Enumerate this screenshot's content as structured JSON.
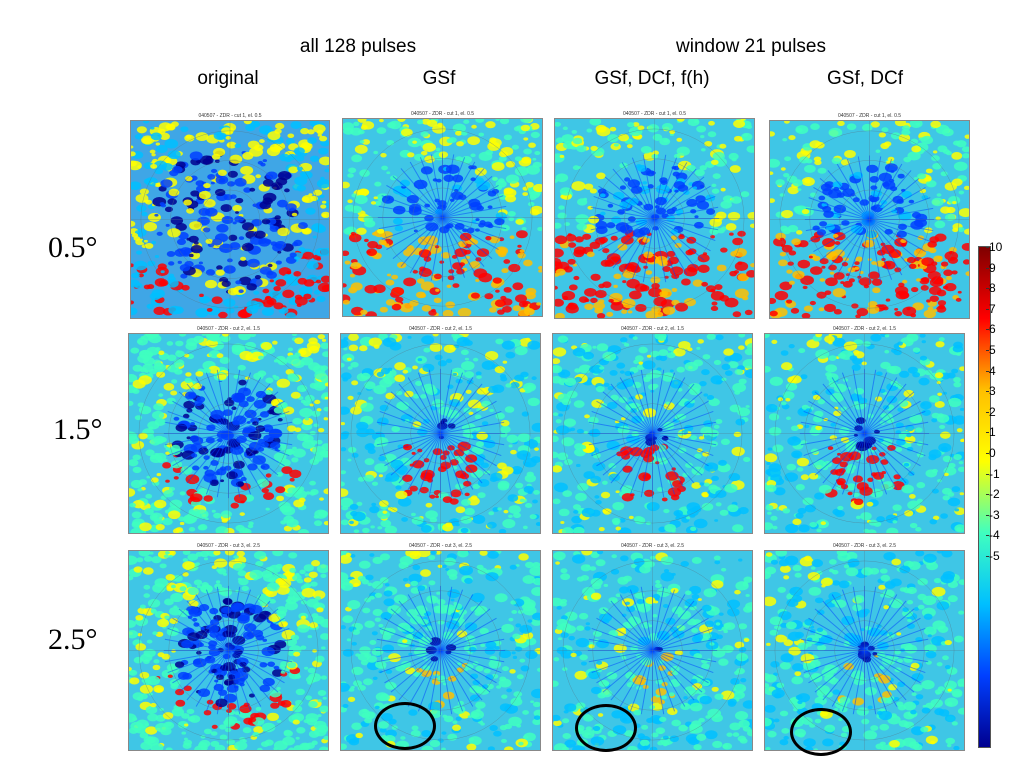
{
  "headers": {
    "group_left": "all 128 pulses",
    "group_right": "window 21 pulses",
    "columns": [
      "original",
      "GSf",
      "GSf, DCf, f(h)",
      "GSf, DCf"
    ]
  },
  "rows": [
    {
      "label": "0.5°",
      "titles": [
        "040507 - ZDR - cut 1, el. 0.5",
        "040507 - ZDR - cut 1, el. 0.5",
        "040507 - ZDR - cut 1, el. 0.5",
        "040507 - ZDR - cut 1, el. 0.5"
      ]
    },
    {
      "label": "1.5°",
      "titles": [
        "040507 - ZDR - cut 2, el. 1.5",
        "040507 - ZDR - cut 2, el. 1.5",
        "040507 - ZDR - cut 2, el. 1.5",
        "040507 - ZDR - cut 2, el. 1.5"
      ]
    },
    {
      "label": "2.5°",
      "titles": [
        "040507 - ZDR - cut 3, el. 2.5",
        "040507 - ZDR - cut 3, el. 2.5",
        "040507 - ZDR - cut 3, el. 2.5",
        "040507 - ZDR - cut 3, el. 2.5"
      ]
    }
  ],
  "colorbar": {
    "ticks": [
      "10",
      "9",
      "8",
      "7",
      "6",
      "5",
      "4",
      "3",
      "2",
      "1",
      "0",
      "-1",
      "-2",
      "-3",
      "-4",
      "-5"
    ],
    "colors": [
      "#7f0000",
      "#ff0000",
      "#ffbf00",
      "#ffff00",
      "#40ffbf",
      "#00bfff",
      "#0040ff",
      "#00008f"
    ]
  }
}
